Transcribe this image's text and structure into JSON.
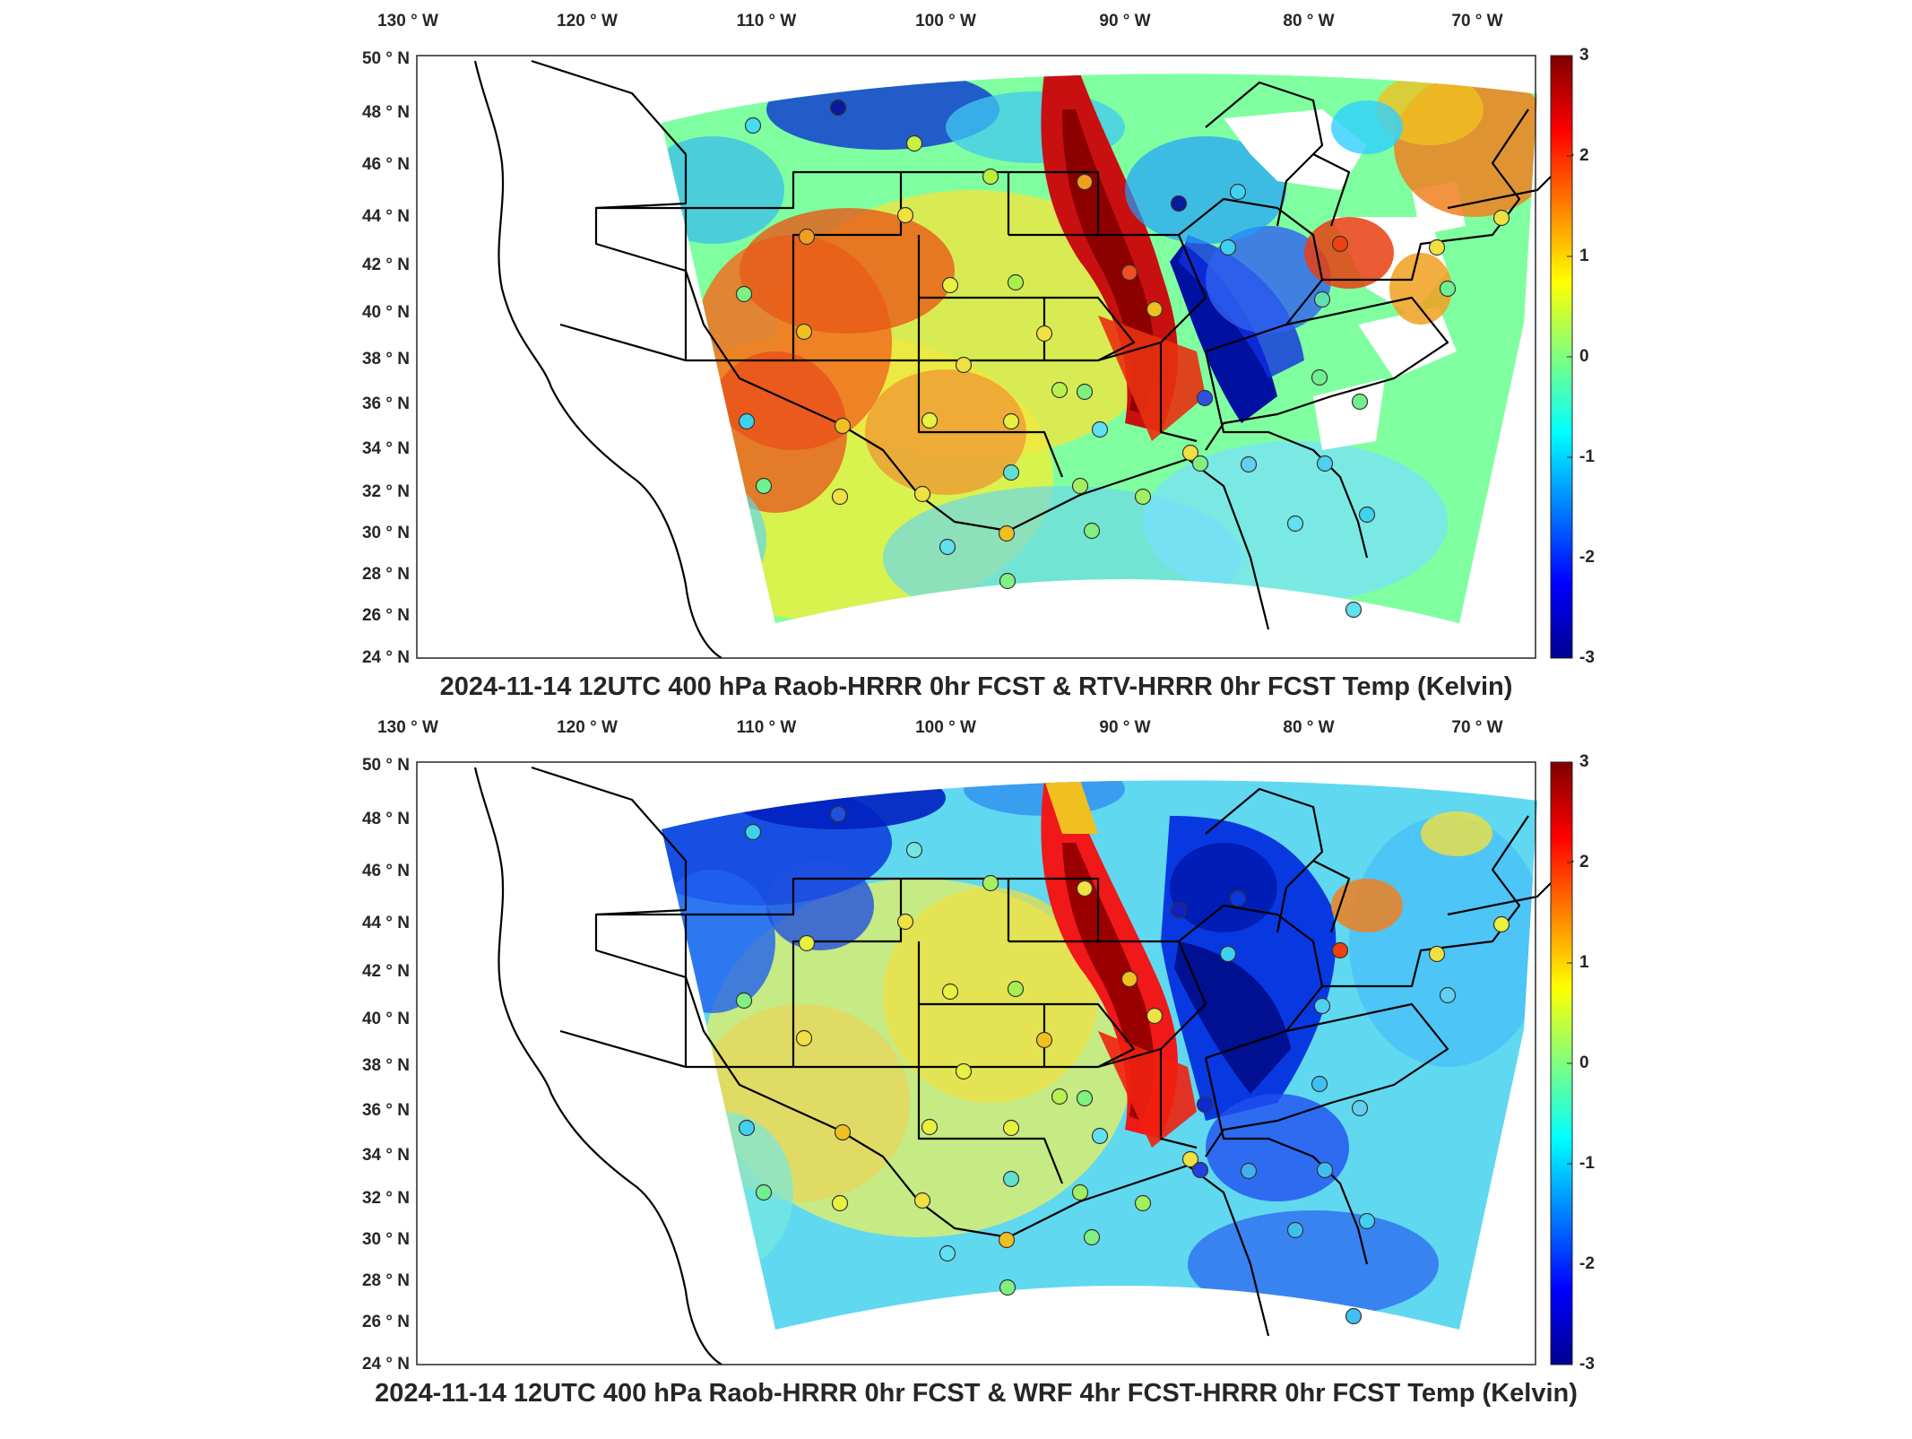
{
  "colorbar": {
    "min": -3,
    "max": 3,
    "ticks": [
      "3",
      "2",
      "1",
      "0",
      "-1",
      "-2",
      "-3"
    ]
  },
  "axes": {
    "lon_labels": [
      "130",
      "120",
      "110",
      "100",
      "90",
      "80",
      "70"
    ],
    "lon_suffix": "W",
    "lat_labels": [
      "50",
      "48",
      "46",
      "44",
      "42",
      "40",
      "38",
      "36",
      "34",
      "32",
      "30",
      "28",
      "26",
      "24"
    ],
    "lat_suffix": "N",
    "degree_mark": "°"
  },
  "panels": [
    {
      "title": "2024-11-14 12UTC 400 hPa Raob-HRRR 0hr FCST & RTV-HRRR 0hr FCST Temp (Kelvin)"
    },
    {
      "title": "2024-11-14 12UTC 400 hPa Raob-HRRR 0hr FCST & WRF 4hr FCST-HRRR 0hr FCST Temp (Kelvin)"
    }
  ],
  "map": {
    "projection": "lambert-conformal",
    "extent": {
      "lon": [
        -130,
        -68
      ],
      "lat": [
        24,
        50
      ]
    },
    "colormap": "jet"
  }
}
